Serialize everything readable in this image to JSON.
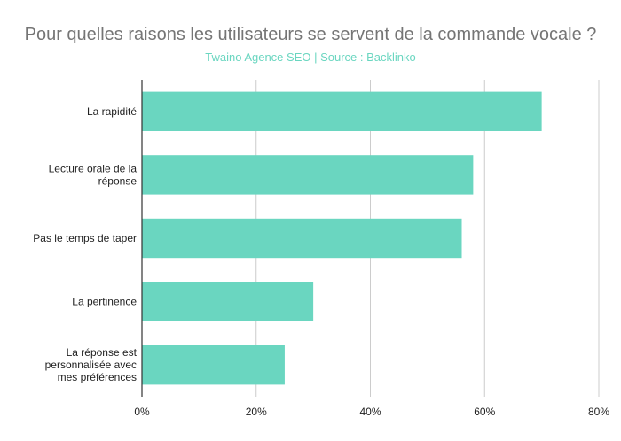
{
  "colors": {
    "bar": "#6ad6c0",
    "subtitle": "#6ad6c0",
    "title": "#757575",
    "grid": "#cccccc",
    "axis": "#333333"
  },
  "chart_data": {
    "type": "bar",
    "orientation": "horizontal",
    "title": "Pour quelles raisons les utilisateurs se servent de la commande vocale ?",
    "subtitle": "Twaino Agence SEO | Source : Backlinko",
    "categories": [
      "La rapidité",
      "Lecture orale de la réponse",
      "Pas le temps de taper",
      "La pertinence",
      "La réponse est personnalisée avec mes préférences"
    ],
    "category_lines": [
      [
        "La rapidité"
      ],
      [
        "Lecture orale de la",
        "réponse"
      ],
      [
        "Pas le temps de taper"
      ],
      [
        "La pertinence"
      ],
      [
        "La réponse est",
        "personnalisée avec",
        "mes préférences"
      ]
    ],
    "values": [
      70,
      58,
      56,
      30,
      25
    ],
    "xlim": [
      0,
      80
    ],
    "x_ticks": [
      0,
      20,
      40,
      60,
      80
    ],
    "x_tick_labels": [
      "0%",
      "20%",
      "40%",
      "60%",
      "80%"
    ],
    "xlabel": "",
    "ylabel": "",
    "grid": true,
    "legend": "none"
  }
}
